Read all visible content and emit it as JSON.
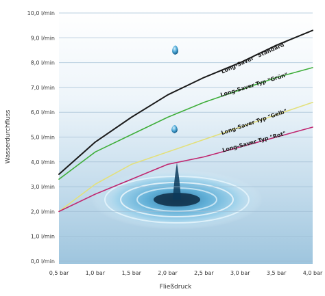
{
  "chart_data": {
    "type": "line",
    "title": "",
    "xlabel": "Fließdruck",
    "ylabel": "Wasserdurchfluss",
    "x": [
      0.5,
      1.0,
      1.5,
      2.0,
      2.5,
      3.0,
      3.5,
      4.0
    ],
    "x_tick_labels": [
      "0,5 bar",
      "1,0 bar",
      "1,5 bar",
      "2,0 bar",
      "2,5 bar",
      "3,0 bar",
      "3,5 bar",
      "4,0 bar"
    ],
    "y_ticks": [
      0,
      1,
      2,
      3,
      4,
      5,
      6,
      7,
      8,
      9,
      10
    ],
    "y_tick_labels": [
      "0,0 l/min",
      "1,0 l/min",
      "2,0 l/min",
      "3,0 l/min",
      "4,0 l/min",
      "5,0 l/min",
      "6,0 l/min",
      "7,0 l/min",
      "8,0 l/min",
      "9,0 l/min",
      "10,0 l/min"
    ],
    "xlim": [
      0.5,
      4.0
    ],
    "ylim": [
      0,
      10
    ],
    "grid": true,
    "series": [
      {
        "name": "Long-Saver \"Standard\"",
        "color": "#1a1a1a",
        "values": [
          3.5,
          4.8,
          5.8,
          6.7,
          7.4,
          8.0,
          8.7,
          9.3
        ]
      },
      {
        "name": "Long-Saver Typ \"Grün\"",
        "color": "#3fae3a",
        "values": [
          3.3,
          4.4,
          5.1,
          5.8,
          6.4,
          6.9,
          7.4,
          7.8
        ]
      },
      {
        "name": "Long-Saver Typ \"Gelb\"",
        "color": "#e3e07a",
        "values": [
          2.0,
          3.1,
          3.9,
          4.4,
          4.9,
          5.4,
          5.9,
          6.4
        ]
      },
      {
        "name": "Long-Saver Typ \"Rot\"",
        "color": "#c0266f",
        "values": [
          2.0,
          2.7,
          3.3,
          3.9,
          4.2,
          4.6,
          5.0,
          5.4
        ]
      }
    ]
  }
}
